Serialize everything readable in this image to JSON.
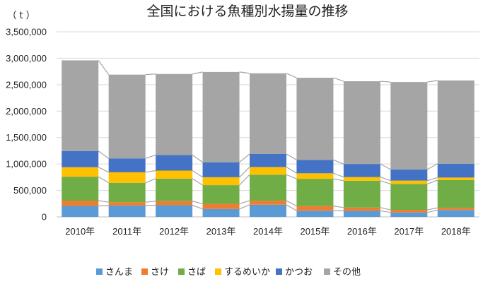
{
  "chart_data": {
    "type": "bar",
    "stacked": true,
    "title": "全国における魚種別水揚量の推移",
    "unit_label": "（ t ）",
    "categories": [
      "2010年",
      "2011年",
      "2012年",
      "2013年",
      "2014年",
      "2015年",
      "2016年",
      "2017年",
      "2018年"
    ],
    "ylim": [
      0,
      3500000
    ],
    "yticks": [
      "0",
      "500,000",
      "1,000,000",
      "1,500,000",
      "2,000,000",
      "2,500,000",
      "3,000,000",
      "3,500,000"
    ],
    "grid": true,
    "legend_position": "bottom",
    "connector_lines": true,
    "series": [
      {
        "name": "さんま",
        "color": "#5b9bd5",
        "values": [
          207000,
          215000,
          221000,
          150000,
          229000,
          116000,
          114000,
          84000,
          129000
        ]
      },
      {
        "name": "さけ",
        "color": "#ed7d31",
        "values": [
          100000,
          63000,
          76000,
          98000,
          77000,
          89000,
          62000,
          49000,
          41000
        ]
      },
      {
        "name": "さば",
        "color": "#70ad47",
        "values": [
          453000,
          366000,
          427000,
          352000,
          492000,
          515000,
          508000,
          489000,
          526000
        ]
      },
      {
        "name": "するめいか",
        "color": "#ffc000",
        "values": [
          179000,
          200000,
          151000,
          150000,
          145000,
          104000,
          70000,
          64000,
          48000
        ]
      },
      {
        "name": "かつお",
        "color": "#4472c4",
        "values": [
          307000,
          262000,
          295000,
          283000,
          246000,
          254000,
          246000,
          212000,
          261000
        ]
      },
      {
        "name": "その他",
        "color": "#a5a5a5",
        "values": [
          1714000,
          1584000,
          1532000,
          1707000,
          1526000,
          1553000,
          1565000,
          1652000,
          1575000
        ]
      }
    ]
  }
}
